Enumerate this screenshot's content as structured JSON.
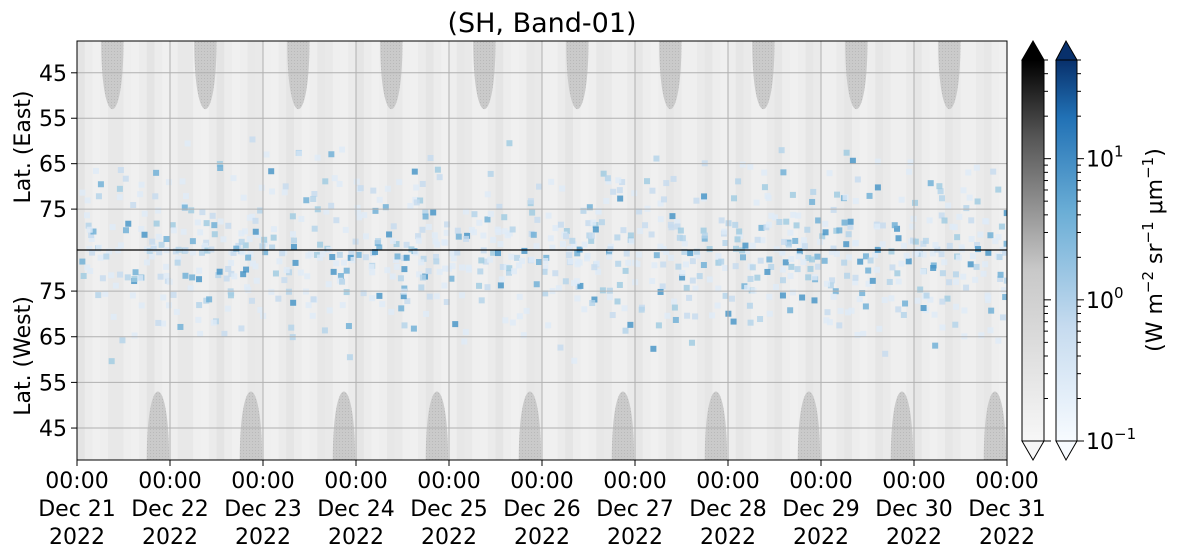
{
  "chart_data": {
    "type": "heatmap",
    "title": "(SH, Band-01)",
    "y_upper_label": "Lat. (East)",
    "y_lower_label": "Lat. (West)",
    "y_upper_ticks": [
      45,
      55,
      65,
      75
    ],
    "y_lower_ticks": [
      75,
      65,
      55,
      45
    ],
    "y_range_each_panel": [
      38,
      84
    ],
    "x_ticks": [
      {
        "time": "00:00",
        "date": "Dec 21",
        "year": "2022"
      },
      {
        "time": "00:00",
        "date": "Dec 22",
        "year": "2022"
      },
      {
        "time": "00:00",
        "date": "Dec 23",
        "year": "2022"
      },
      {
        "time": "00:00",
        "date": "Dec 24",
        "year": "2022"
      },
      {
        "time": "00:00",
        "date": "Dec 25",
        "year": "2022"
      },
      {
        "time": "00:00",
        "date": "Dec 26",
        "year": "2022"
      },
      {
        "time": "00:00",
        "date": "Dec 27",
        "year": "2022"
      },
      {
        "time": "00:00",
        "date": "Dec 28",
        "year": "2022"
      },
      {
        "time": "00:00",
        "date": "Dec 29",
        "year": "2022"
      },
      {
        "time": "00:00",
        "date": "Dec 30",
        "year": "2022"
      },
      {
        "time": "00:00",
        "date": "Dec 31",
        "year": "2022"
      }
    ],
    "x_range_days": [
      0,
      10
    ],
    "grid": true,
    "colorbar": {
      "label": "(W m$^{-2}$ sr$^{-1}$ $\\mu$m$^{-1}$)",
      "label_parts": [
        "(W m",
        "−2",
        " sr",
        "−1",
        " μm",
        "−1",
        ")"
      ],
      "scale": "log",
      "range": [
        0.1,
        50
      ],
      "tick_labels": [
        {
          "value": 10,
          "base": "10",
          "exp": "1"
        },
        {
          "value": 1,
          "base": "10",
          "exp": "0"
        },
        {
          "value": 0.1,
          "base": "10",
          "exp": "−1"
        }
      ],
      "gray_map": {
        "low": "#f7f7f7",
        "high": "#000000"
      },
      "blue_map": {
        "low": "#f7fbff",
        "high": "#08306b"
      },
      "extend": "both"
    },
    "night_region_color": "#c4c4c4",
    "aurora_color": "#9ecae1",
    "divider_color": "#000000"
  }
}
